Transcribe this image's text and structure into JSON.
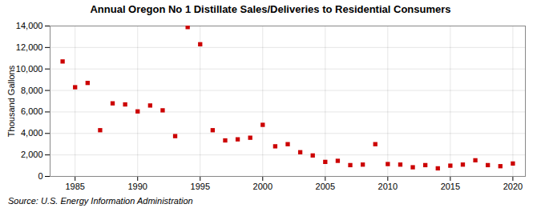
{
  "chart_data": {
    "type": "scatter",
    "title": "Annual Oregon No 1 Distillate Sales/Deliveries to Residential Consumers",
    "ylabel": "Thousand Gallons",
    "source": "Source: U.S. Energy Information Administration",
    "x": [
      1984,
      1985,
      1986,
      1987,
      1988,
      1989,
      1990,
      1991,
      1992,
      1993,
      1994,
      1995,
      1996,
      1997,
      1998,
      1999,
      2000,
      2001,
      2002,
      2003,
      2004,
      2005,
      2006,
      2007,
      2008,
      2009,
      2010,
      2011,
      2012,
      2013,
      2014,
      2015,
      2016,
      2017,
      2018,
      2019,
      2020
    ],
    "values": [
      10700,
      8300,
      8700,
      4300,
      6800,
      6700,
      6050,
      6600,
      6150,
      3750,
      13900,
      12300,
      4300,
      3350,
      3450,
      3600,
      4800,
      2800,
      3000,
      2250,
      1950,
      1350,
      1450,
      1050,
      1100,
      3000,
      1150,
      1100,
      850,
      1050,
      750,
      1000,
      1100,
      1500,
      1050,
      950,
      1200
    ],
    "color": "#cc0000",
    "marker": "square",
    "xlim": [
      1983,
      2021
    ],
    "xticks": [
      1985,
      1990,
      1995,
      2000,
      2005,
      2010,
      2015,
      2020
    ],
    "ylim": [
      0,
      14000
    ],
    "yticks": [
      0,
      {
        "value": 2000,
        "label": "2,000"
      },
      {
        "value": 4000,
        "label": "4,000"
      },
      {
        "value": 6000,
        "label": "6,000"
      },
      {
        "value": 8000,
        "label": "8,000"
      },
      {
        "value": 10000,
        "label": "10,000"
      },
      {
        "value": 12000,
        "label": "12,000"
      },
      {
        "value": 14000,
        "label": "14,000"
      }
    ],
    "grid": true
  }
}
